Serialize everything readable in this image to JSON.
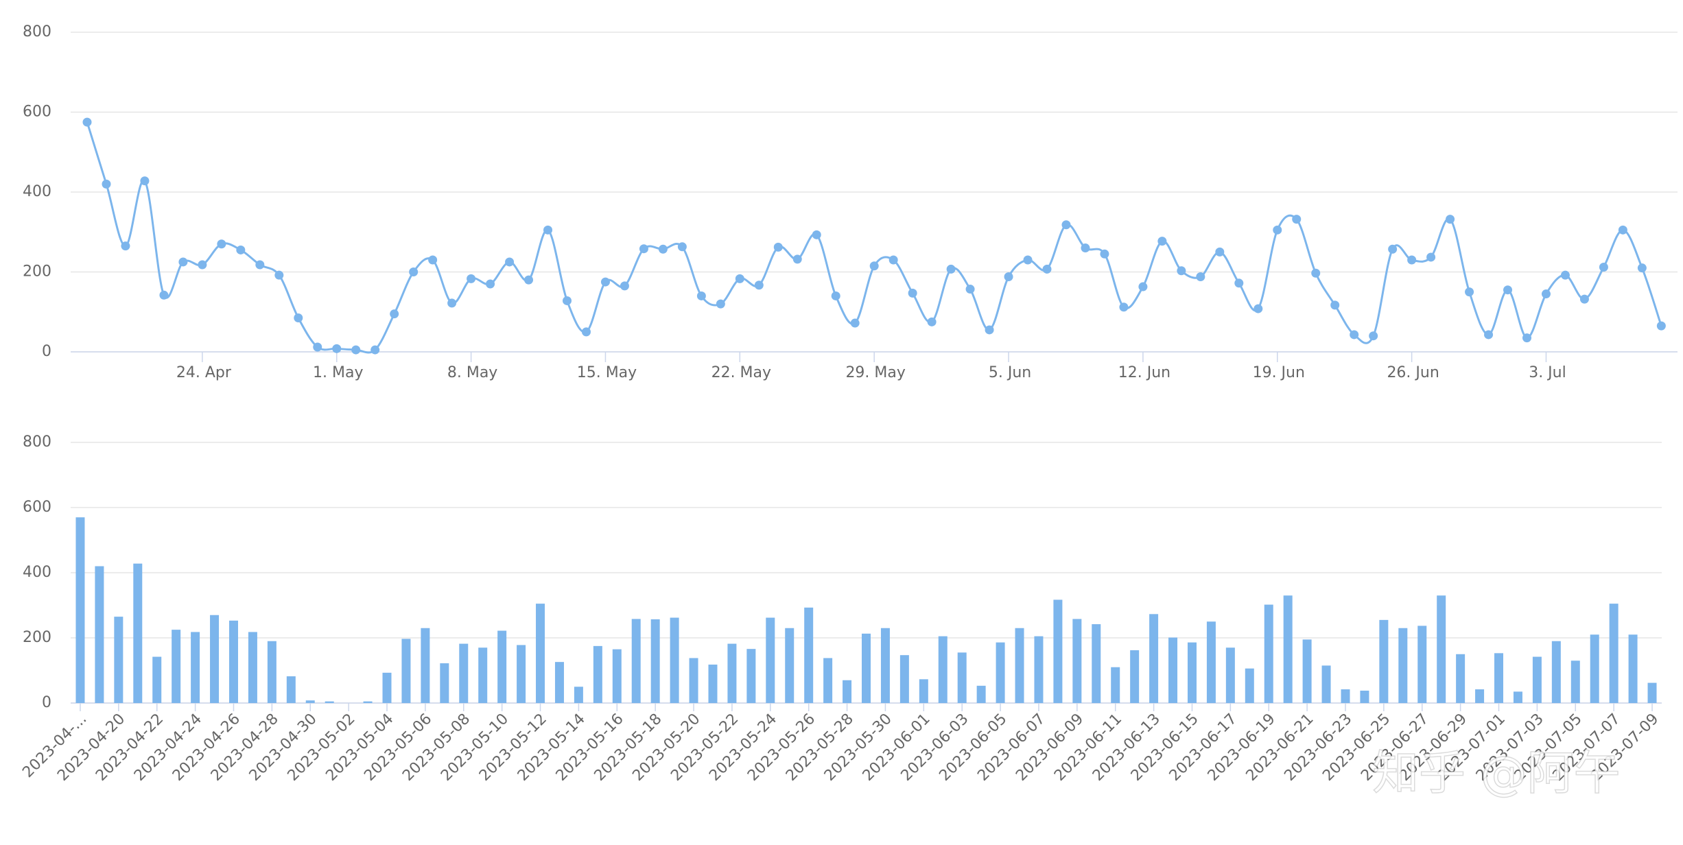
{
  "chart_data": [
    {
      "type": "line",
      "color": "#7cb5ec",
      "grid": true,
      "x": [
        "18. Apr",
        "19. Apr",
        "20. Apr",
        "21. Apr",
        "22. Apr",
        "23. Apr",
        "24. Apr",
        "25. Apr",
        "26. Apr",
        "27. Apr",
        "28. Apr",
        "29. Apr",
        "30. Apr",
        "1. May",
        "2. May",
        "3. May",
        "4. May",
        "5. May",
        "6. May",
        "7. May",
        "8. May",
        "9. May",
        "10. May",
        "11. May",
        "12. May",
        "13. May",
        "14. May",
        "15. May",
        "16. May",
        "17. May",
        "18. May",
        "19. May",
        "20. May",
        "21. May",
        "22. May",
        "23. May",
        "24. May",
        "25. May",
        "26. May",
        "27. May",
        "28. May",
        "29. May",
        "30. May",
        "31. May",
        "1. Jun",
        "2. Jun",
        "3. Jun",
        "4. Jun",
        "5. Jun",
        "6. Jun",
        "7. Jun",
        "8. Jun",
        "9. Jun",
        "10. Jun",
        "11. Jun",
        "12. Jun",
        "13. Jun",
        "14. Jun",
        "15. Jun",
        "16. Jun",
        "17. Jun",
        "18. Jun",
        "19. Jun",
        "20. Jun",
        "21. Jun",
        "22. Jun",
        "23. Jun",
        "24. Jun",
        "25. Jun",
        "26. Jun",
        "27. Jun",
        "28. Jun",
        "29. Jun",
        "30. Jun",
        "1. Jul",
        "2. Jul",
        "3. Jul",
        "4. Jul",
        "5. Jul",
        "6. Jul",
        "7. Jul",
        "8. Jul",
        "9. Jul"
      ],
      "values": [
        575,
        420,
        265,
        428,
        142,
        225,
        218,
        270,
        255,
        218,
        192,
        85,
        12,
        8,
        5,
        5,
        95,
        200,
        230,
        122,
        183,
        170,
        225,
        180,
        305,
        128,
        50,
        175,
        165,
        258,
        257,
        263,
        140,
        120,
        183,
        167,
        262,
        232,
        293,
        140,
        72,
        215,
        230,
        147,
        75,
        207,
        157,
        55,
        188,
        230,
        207,
        318,
        260,
        245,
        112,
        163,
        277,
        203,
        188,
        250,
        172,
        108,
        305,
        332,
        197,
        117,
        43,
        40,
        257,
        230,
        237,
        332,
        150,
        43,
        155,
        35,
        145,
        192,
        132,
        212,
        305,
        210,
        65
      ],
      "xticks": [
        "24. Apr",
        "1. May",
        "8. May",
        "15. May",
        "22. May",
        "29. May",
        "5. Jun",
        "12. Jun",
        "19. Jun",
        "26. Jun",
        "3. Jul"
      ],
      "ylim": [
        0,
        800
      ],
      "yticks": [
        0,
        200,
        400,
        600,
        800
      ]
    },
    {
      "type": "bar",
      "color": "#7cb5ec",
      "grid": true,
      "categories": [
        "2023-04-...",
        null,
        "2023-04-20",
        null,
        "2023-04-22",
        null,
        "2023-04-24",
        null,
        "2023-04-26",
        null,
        "2023-04-28",
        null,
        "2023-04-30",
        null,
        "2023-05-02",
        null,
        "2023-05-04",
        null,
        "2023-05-06",
        null,
        "2023-05-08",
        null,
        "2023-05-10",
        null,
        "2023-05-12",
        null,
        "2023-05-14",
        null,
        "2023-05-16",
        null,
        "2023-05-18",
        null,
        "2023-05-20",
        null,
        "2023-05-22",
        null,
        "2023-05-24",
        null,
        "2023-05-26",
        null,
        "2023-05-28",
        null,
        "2023-05-30",
        null,
        "2023-06-01",
        null,
        "2023-06-03",
        null,
        "2023-06-05",
        null,
        "2023-06-07",
        null,
        "2023-06-09",
        null,
        "2023-06-11",
        null,
        "2023-06-13",
        null,
        "2023-06-15",
        null,
        "2023-06-17",
        null,
        "2023-06-19",
        null,
        "2023-06-21",
        null,
        "2023-06-23",
        null,
        "2023-06-25",
        null,
        "2023-06-27",
        null,
        "2023-06-29",
        null,
        "2023-07-01",
        null,
        "2023-07-03",
        null,
        "2023-07-05",
        null,
        "2023-07-07",
        null,
        "2023-07-09"
      ],
      "values": [
        570,
        420,
        265,
        428,
        142,
        225,
        218,
        270,
        253,
        218,
        190,
        82,
        8,
        5,
        0,
        5,
        93,
        197,
        230,
        122,
        182,
        170,
        222,
        178,
        305,
        126,
        50,
        175,
        165,
        258,
        257,
        262,
        138,
        118,
        182,
        166,
        262,
        230,
        293,
        138,
        70,
        213,
        230,
        147,
        73,
        205,
        155,
        53,
        186,
        230,
        205,
        317,
        258,
        242,
        110,
        162,
        273,
        201,
        186,
        250,
        170,
        106,
        302,
        330,
        195,
        115,
        42,
        38,
        255,
        230,
        237,
        330,
        150,
        42,
        153,
        35,
        142,
        190,
        130,
        210,
        305,
        210,
        62
      ],
      "ylim": [
        0,
        800
      ],
      "yticks": [
        0,
        200,
        400,
        600,
        800
      ]
    }
  ],
  "watermark": "知乎 @阿午"
}
